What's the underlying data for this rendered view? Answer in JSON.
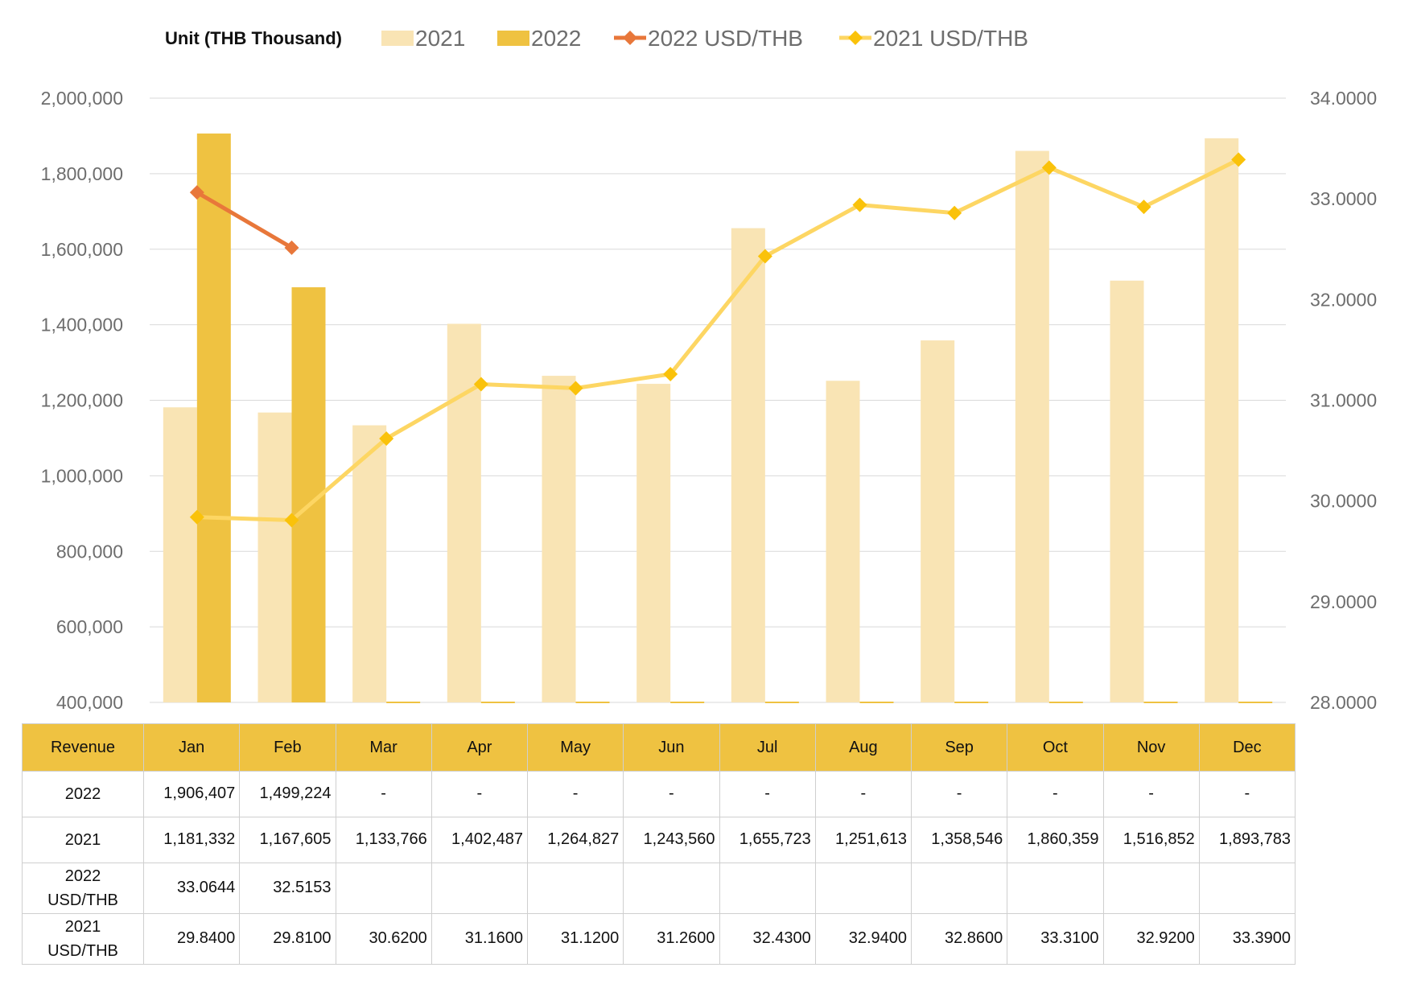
{
  "chart_data": {
    "type": "bar",
    "unit_label": "Unit (THB  Thousand)",
    "categories": [
      "Jan",
      "Feb",
      "Mar",
      "Apr",
      "May",
      "Jun",
      "Jul",
      "Aug",
      "Sep",
      "Oct",
      "Nov",
      "Dec"
    ],
    "y_left": {
      "range": [
        400000,
        2000000
      ],
      "ticks": [
        "400,000",
        "600,000",
        "800,000",
        "1,000,000",
        "1,200,000",
        "1,400,000",
        "1,600,000",
        "1,800,000",
        "2,000,000"
      ]
    },
    "y_right": {
      "range": [
        28,
        34
      ],
      "ticks": [
        "28.0000",
        "29.0000",
        "30.0000",
        "31.0000",
        "32.0000",
        "33.0000",
        "34.0000"
      ]
    },
    "grid": true,
    "legend_position": "top",
    "series": [
      {
        "name": "2021",
        "type": "bar",
        "axis": "left",
        "color": "#f9e4b4",
        "values": [
          1181332,
          1167605,
          1133766,
          1402487,
          1264827,
          1243560,
          1655723,
          1251613,
          1358546,
          1860359,
          1516852,
          1893783
        ]
      },
      {
        "name": "2022",
        "type": "bar",
        "axis": "left",
        "color": "#efc241",
        "values": [
          1906407,
          1499224,
          null,
          null,
          null,
          null,
          null,
          null,
          null,
          null,
          null,
          null
        ]
      },
      {
        "name": "2022 USD/THB",
        "type": "line",
        "axis": "right",
        "color": "#e8773a",
        "values": [
          33.0644,
          32.5153,
          null,
          null,
          null,
          null,
          null,
          null,
          null,
          null,
          null,
          null
        ]
      },
      {
        "name": "2021 USD/THB",
        "type": "line",
        "axis": "right",
        "color": "#fdd663",
        "marker_color": "#fac20a",
        "values": [
          29.84,
          29.81,
          30.62,
          31.16,
          31.12,
          31.26,
          32.43,
          32.94,
          32.86,
          33.31,
          32.92,
          33.39
        ]
      }
    ]
  },
  "table": {
    "header": [
      "Revenue",
      "Jan",
      "Feb",
      "Mar",
      "Apr",
      "May",
      "Jun",
      "Jul",
      "Aug",
      "Sep",
      "Oct",
      "Nov",
      "Dec"
    ],
    "rows": [
      {
        "label": [
          "2022"
        ],
        "cells": [
          "1,906,407",
          "1,499,224",
          "-",
          "-",
          "-",
          "-",
          "-",
          "-",
          "-",
          "-",
          "-",
          "-"
        ]
      },
      {
        "label": [
          "2021"
        ],
        "cells": [
          "1,181,332",
          "1,167,605",
          "1,133,766",
          "1,402,487",
          "1,264,827",
          "1,243,560",
          "1,655,723",
          "1,251,613",
          "1,358,546",
          "1,860,359",
          "1,516,852",
          "1,893,783"
        ]
      },
      {
        "label": [
          "2022",
          "USD/THB"
        ],
        "cells": [
          "33.0644",
          "32.5153",
          "",
          "",
          "",
          "",
          "",
          "",
          "",
          "",
          "",
          ""
        ]
      },
      {
        "label": [
          "2021",
          "USD/THB"
        ],
        "cells": [
          "29.8400",
          "29.8100",
          "30.6200",
          "31.1600",
          "31.1200",
          "31.2600",
          "32.4300",
          "32.9400",
          "32.8600",
          "33.3100",
          "32.9200",
          "33.3900"
        ]
      }
    ]
  }
}
